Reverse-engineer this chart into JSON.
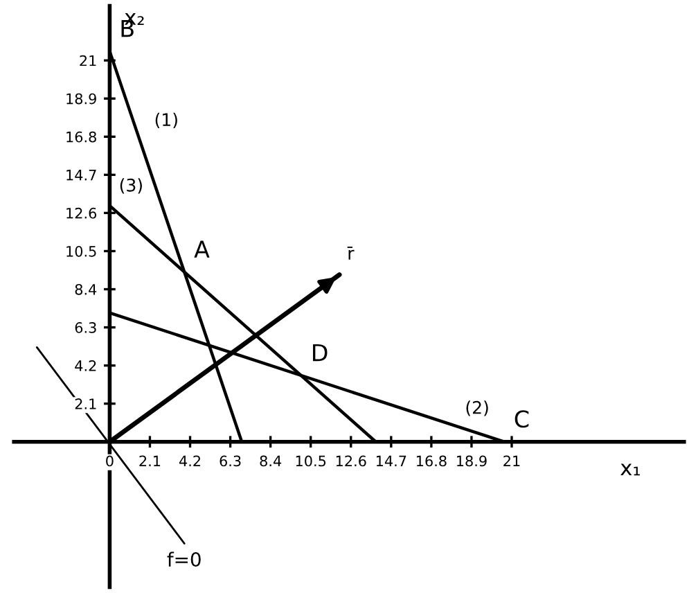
{
  "chart_data": {
    "type": "line",
    "xlabel": "x₁",
    "ylabel": "x₂",
    "xlim": [
      -5,
      30
    ],
    "ylim": [
      -8,
      24
    ],
    "xticks": [
      0,
      2.1,
      4.2,
      6.3,
      8.4,
      10.5,
      12.6,
      14.7,
      16.8,
      18.9,
      21
    ],
    "yticks": [
      2.1,
      4.2,
      6.3,
      8.4,
      10.5,
      12.6,
      14.7,
      16.8,
      18.9,
      21
    ],
    "grid": false,
    "legend": false,
    "marker": "none",
    "line_style": "solid",
    "series": [
      {
        "name": "(1)",
        "color": "#000000",
        "x": [
          0,
          6.9
        ],
        "values": [
          21.5,
          0
        ]
      },
      {
        "name": "(2)",
        "color": "#000000",
        "x": [
          0,
          20.6
        ],
        "values": [
          7.1,
          0
        ]
      },
      {
        "name": "(3)",
        "color": "#000000",
        "x": [
          0,
          13.9
        ],
        "values": [
          13,
          0
        ]
      },
      {
        "name": "r̄",
        "color": "#000000",
        "x": [
          0,
          12
        ],
        "values": [
          0,
          9.2
        ]
      },
      {
        "name": "f=0",
        "color": "#000000",
        "x": [
          -3.8,
          3.9
        ],
        "values": [
          5.2,
          -5.6
        ]
      }
    ],
    "annotations": [
      {
        "text": "A",
        "x": 3.9,
        "y": 9.35
      },
      {
        "text": "B",
        "x": 0,
        "y": 21.5
      },
      {
        "text": "C",
        "x": 20.6,
        "y": 0
      },
      {
        "text": "D",
        "x": 10,
        "y": 3.65
      }
    ]
  }
}
